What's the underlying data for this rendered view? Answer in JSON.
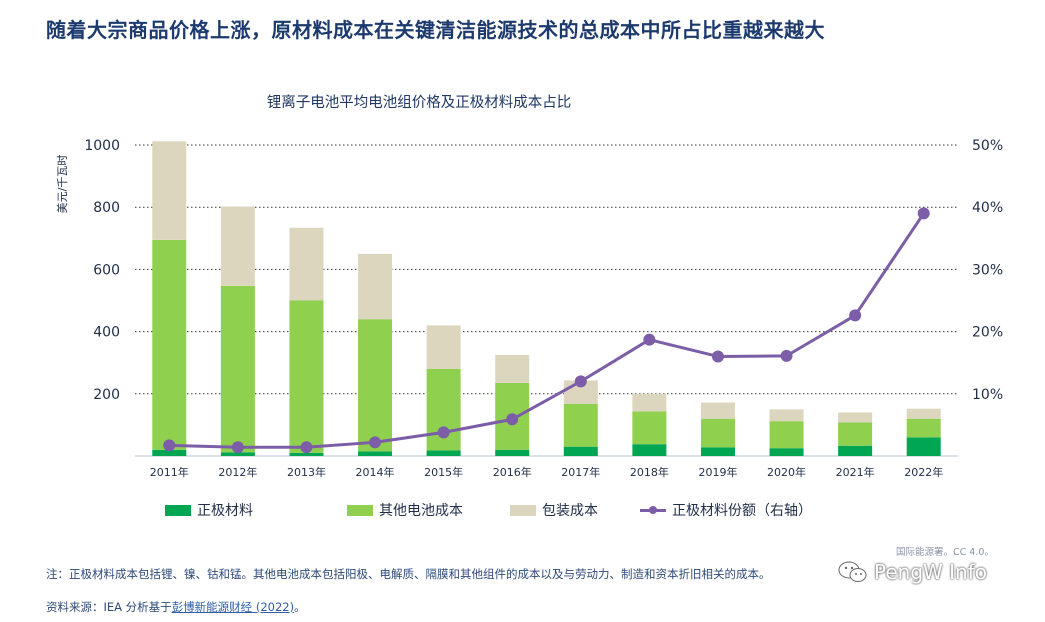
{
  "headline": "随着大宗商品价格上涨，原材料成本在关键清洁能源技术的总成本中所占比重越来越大",
  "chart_data": {
    "type": "bar",
    "stacked": true,
    "title": "锂离子电池平均电池组价格及正极材料成本占比",
    "ylabel": "美元/千瓦时",
    "ylim": [
      0,
      1000
    ],
    "y_ticks": [
      "200",
      "400",
      "600",
      "800",
      "1000"
    ],
    "y2_ticks": [
      "10%",
      "20%",
      "30%",
      "40%",
      "50%"
    ],
    "y2lim": [
      0,
      50
    ],
    "categories": [
      "2011年",
      "2012年",
      "2013年",
      "2014年",
      "2015年",
      "2016年",
      "2017年",
      "2018年",
      "2019年",
      "2020年",
      "2021年",
      "2022年"
    ],
    "series": [
      {
        "name": "正极材料",
        "color": "#00a651",
        "values": [
          20,
          12,
          10,
          15,
          18,
          20,
          30,
          38,
          28,
          25,
          33,
          60
        ]
      },
      {
        "name": "其他电池成本",
        "color": "#8fd14f",
        "values": [
          675,
          535,
          490,
          425,
          262,
          215,
          138,
          105,
          92,
          87,
          75,
          60
        ]
      },
      {
        "name": "包装成本",
        "color": "#dcd6bf",
        "values": [
          317,
          255,
          234,
          210,
          140,
          90,
          75,
          57,
          52,
          38,
          32,
          32
        ]
      }
    ],
    "line_series": {
      "name": "正极材料份额（右轴）",
      "color": "#7b5ea7",
      "axis": "right",
      "values": [
        1.7,
        1.4,
        1.4,
        2.2,
        3.8,
        5.9,
        12.0,
        18.7,
        16.0,
        16.1,
        22.6,
        39.0
      ]
    }
  },
  "legend": {
    "cathode": "正极材料",
    "other": "其他电池成本",
    "pack": "包装成本",
    "share": "正极材料份额（右轴）"
  },
  "license": "国际能源署。CC 4.0。",
  "note": "注：正极材料成本包括锂、镍、钴和锰。其他电池成本包括阳极、电解质、隔膜和其他组件的成本以及与劳动力、制造和资本折旧相关的成本。",
  "source_prefix": "资料来源：IEA 分析基于",
  "source_link": "彭博新能源财经 (2022)",
  "source_suffix": "。",
  "watermark": "PengW Info",
  "colors": {
    "cathode": "#00a651",
    "other": "#8fd14f",
    "pack": "#dcd6bf",
    "share": "#7b5ea7"
  }
}
